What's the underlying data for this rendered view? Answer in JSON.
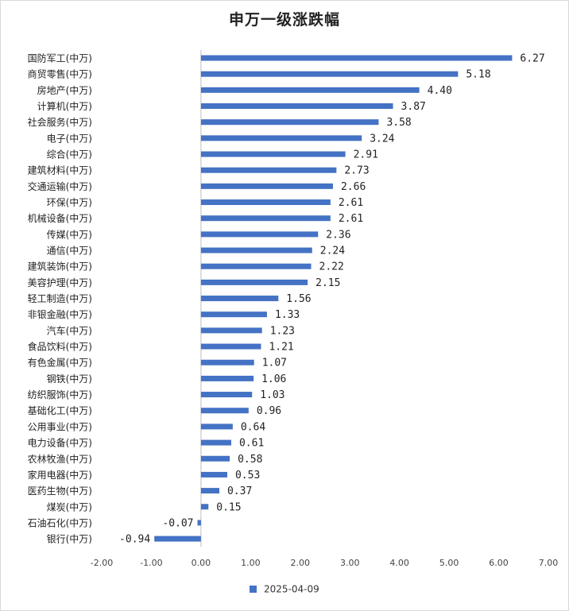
{
  "chart_data": {
    "type": "bar",
    "orientation": "horizontal",
    "title": "申万一级涨跌幅",
    "xlim": [
      -2,
      7
    ],
    "xticks": [
      "-2.00",
      "-1.00",
      "0.00",
      "1.00",
      "2.00",
      "3.00",
      "4.00",
      "5.00",
      "6.00",
      "7.00"
    ],
    "grid": false,
    "legend_position": "bottom",
    "colors": {
      "bar": "#4472C4"
    },
    "categories": [
      "国防军工(中万)",
      "商贸零售(中万)",
      "房地产(中万)",
      "计算机(中万)",
      "社会服务(中万)",
      "电子(中万)",
      "综合(中万)",
      "建筑材料(中万)",
      "交通运输(中万)",
      "环保(中万)",
      "机械设备(中万)",
      "传媒(中万)",
      "通信(中万)",
      "建筑装饰(中万)",
      "美容护理(中万)",
      "轻工制造(中万)",
      "非银金融(中万)",
      "汽车(中万)",
      "食品饮料(中万)",
      "有色金属(中万)",
      "钢铁(中万)",
      "纺织服饰(中万)",
      "基础化工(中万)",
      "公用事业(中万)",
      "电力设备(中万)",
      "农林牧渔(中万)",
      "家用电器(中万)",
      "医药生物(中万)",
      "煤炭(中万)",
      "石油石化(中万)",
      "银行(中万)"
    ],
    "series": [
      {
        "name": "2025-04-09",
        "values": [
          6.27,
          5.18,
          4.4,
          3.87,
          3.58,
          3.24,
          2.91,
          2.73,
          2.66,
          2.61,
          2.61,
          2.36,
          2.24,
          2.22,
          2.15,
          1.56,
          1.33,
          1.23,
          1.21,
          1.07,
          1.06,
          1.03,
          0.96,
          0.64,
          0.61,
          0.58,
          0.53,
          0.37,
          0.15,
          -0.07,
          -0.94
        ],
        "labels": [
          "6.27",
          "5.18",
          "4.40",
          "3.87",
          "3.58",
          "3.24",
          "2.91",
          "2.73",
          "2.66",
          "2.61",
          "2.61",
          "2.36",
          "2.24",
          "2.22",
          "2.15",
          "1.56",
          "1.33",
          "1.23",
          "1.21",
          "1.07",
          "1.06",
          "1.03",
          "0.96",
          "0.64",
          "0.61",
          "0.58",
          "0.53",
          "0.37",
          "0.15",
          "-0.07",
          "-0.94"
        ]
      }
    ]
  }
}
